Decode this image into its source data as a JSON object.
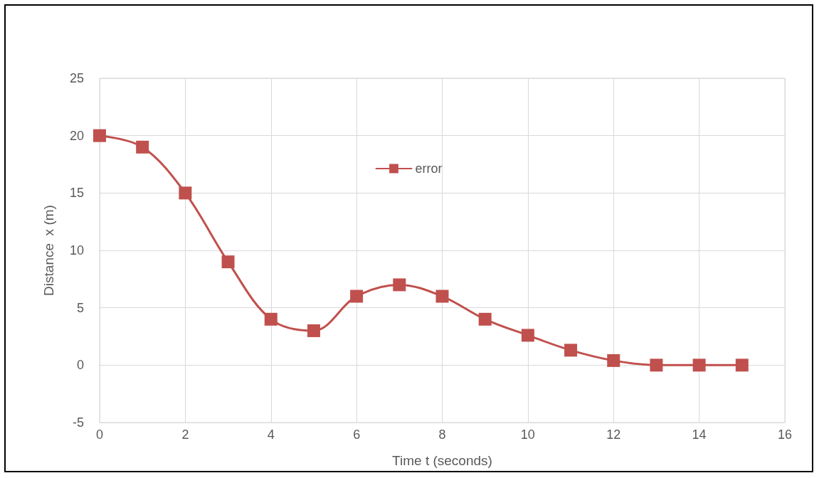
{
  "chart_data": {
    "type": "line",
    "xlabel": "Time t (seconds)",
    "ylabel": "Distance  x (m)",
    "x": [
      0,
      1,
      2,
      3,
      4,
      5,
      6,
      7,
      8,
      9,
      10,
      11,
      12,
      13,
      14,
      15
    ],
    "series": [
      {
        "name": "error",
        "color": "#c0504d",
        "values": [
          20,
          19,
          15,
          9,
          4,
          3,
          6,
          7,
          6,
          4,
          2.6,
          1.3,
          0.4,
          0,
          0,
          0
        ]
      }
    ],
    "xlim": [
      0,
      16
    ],
    "xticks": [
      0,
      2,
      4,
      6,
      8,
      10,
      12,
      14,
      16
    ],
    "ylim": [
      -5,
      25
    ],
    "yticks": [
      -5,
      0,
      5,
      10,
      15,
      20,
      25
    ],
    "grid": true,
    "legend": "top",
    "marker": "square",
    "line_style": "solid"
  }
}
